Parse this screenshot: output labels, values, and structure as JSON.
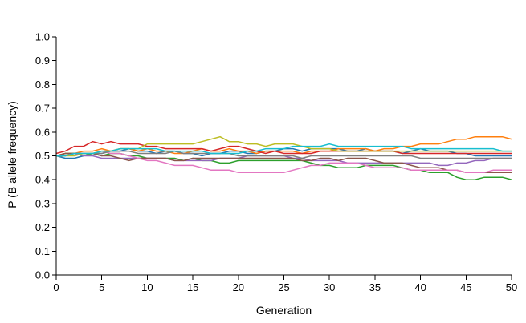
{
  "chart_data": {
    "type": "line",
    "xlabel": "Generation",
    "ylabel": "P (B allele frequency)",
    "xlim": [
      0,
      50
    ],
    "ylim": [
      0,
      1
    ],
    "x_ticks": [
      "0",
      "5",
      "10",
      "15",
      "20",
      "25",
      "30",
      "35",
      "40",
      "45",
      "50"
    ],
    "y_ticks": [
      "0.0",
      "0.1",
      "0.2",
      "0.3",
      "0.4",
      "0.5",
      "0.6",
      "0.7",
      "0.8",
      "0.9",
      "1.0"
    ],
    "grid": false,
    "legend": "none",
    "x": [
      0,
      1,
      2,
      3,
      4,
      5,
      6,
      7,
      8,
      9,
      10,
      11,
      12,
      13,
      14,
      15,
      16,
      17,
      18,
      19,
      20,
      21,
      22,
      23,
      24,
      25,
      26,
      27,
      28,
      29,
      30,
      31,
      32,
      33,
      34,
      35,
      36,
      37,
      38,
      39,
      40,
      41,
      42,
      43,
      44,
      45,
      46,
      47,
      48,
      49,
      50
    ],
    "series": [
      {
        "color": "#1f77b4",
        "values": [
          0.5,
          0.49,
          0.49,
          0.5,
          0.51,
          0.51,
          0.52,
          0.52,
          0.53,
          0.52,
          0.52,
          0.51,
          0.52,
          0.52,
          0.51,
          0.51,
          0.5,
          0.51,
          0.51,
          0.52,
          0.52,
          0.51,
          0.51,
          0.52,
          0.52,
          0.53,
          0.53,
          0.52,
          0.53,
          0.53,
          0.53,
          0.53,
          0.52,
          0.52,
          0.53,
          0.52,
          0.52,
          0.52,
          0.51,
          0.52,
          0.53,
          0.52,
          0.52,
          0.52,
          0.51,
          0.51,
          0.5,
          0.5,
          0.5,
          0.5,
          0.5
        ]
      },
      {
        "color": "#ff7f0e",
        "values": [
          0.5,
          0.51,
          0.51,
          0.52,
          0.52,
          0.53,
          0.52,
          0.53,
          0.53,
          0.52,
          0.53,
          0.52,
          0.52,
          0.51,
          0.51,
          0.52,
          0.53,
          0.52,
          0.52,
          0.53,
          0.52,
          0.52,
          0.51,
          0.52,
          0.52,
          0.52,
          0.52,
          0.51,
          0.52,
          0.52,
          0.52,
          0.53,
          0.53,
          0.53,
          0.53,
          0.52,
          0.53,
          0.53,
          0.54,
          0.54,
          0.55,
          0.55,
          0.55,
          0.56,
          0.57,
          0.57,
          0.58,
          0.58,
          0.58,
          0.58,
          0.57
        ]
      },
      {
        "color": "#2ca02c",
        "values": [
          0.5,
          0.51,
          0.51,
          0.5,
          0.51,
          0.5,
          0.51,
          0.51,
          0.5,
          0.5,
          0.49,
          0.49,
          0.49,
          0.49,
          0.48,
          0.49,
          0.48,
          0.48,
          0.47,
          0.47,
          0.48,
          0.48,
          0.48,
          0.48,
          0.48,
          0.48,
          0.48,
          0.48,
          0.47,
          0.46,
          0.46,
          0.45,
          0.45,
          0.45,
          0.46,
          0.46,
          0.46,
          0.46,
          0.45,
          0.44,
          0.44,
          0.43,
          0.43,
          0.43,
          0.41,
          0.4,
          0.4,
          0.41,
          0.41,
          0.41,
          0.4
        ]
      },
      {
        "color": "#d62728",
        "values": [
          0.51,
          0.52,
          0.54,
          0.54,
          0.56,
          0.55,
          0.56,
          0.55,
          0.55,
          0.55,
          0.54,
          0.54,
          0.53,
          0.53,
          0.53,
          0.53,
          0.53,
          0.52,
          0.53,
          0.54,
          0.54,
          0.53,
          0.52,
          0.51,
          0.52,
          0.51,
          0.51,
          0.51,
          0.51,
          0.52,
          0.52,
          0.52,
          0.52,
          0.52,
          0.52,
          0.52,
          0.52,
          0.52,
          0.51,
          0.51,
          0.51,
          0.51,
          0.51,
          0.51,
          0.51,
          0.51,
          0.51,
          0.51,
          0.51,
          0.51,
          0.51
        ]
      },
      {
        "color": "#9467bd",
        "values": [
          0.5,
          0.5,
          0.51,
          0.5,
          0.5,
          0.49,
          0.49,
          0.49,
          0.49,
          0.49,
          0.49,
          0.49,
          0.49,
          0.48,
          0.48,
          0.48,
          0.48,
          0.48,
          0.49,
          0.49,
          0.49,
          0.5,
          0.5,
          0.5,
          0.5,
          0.5,
          0.49,
          0.49,
          0.48,
          0.48,
          0.48,
          0.48,
          0.47,
          0.47,
          0.47,
          0.47,
          0.47,
          0.47,
          0.47,
          0.47,
          0.47,
          0.47,
          0.46,
          0.46,
          0.47,
          0.47,
          0.48,
          0.48,
          0.49,
          0.49,
          0.49
        ]
      },
      {
        "color": "#8c564b",
        "values": [
          0.5,
          0.51,
          0.51,
          0.51,
          0.51,
          0.5,
          0.5,
          0.49,
          0.48,
          0.49,
          0.49,
          0.49,
          0.49,
          0.48,
          0.48,
          0.49,
          0.49,
          0.49,
          0.49,
          0.49,
          0.49,
          0.49,
          0.49,
          0.49,
          0.49,
          0.49,
          0.49,
          0.48,
          0.48,
          0.49,
          0.49,
          0.48,
          0.49,
          0.49,
          0.49,
          0.48,
          0.47,
          0.47,
          0.47,
          0.46,
          0.45,
          0.45,
          0.45,
          0.44,
          0.44,
          0.43,
          0.43,
          0.43,
          0.43,
          0.43,
          0.43
        ]
      },
      {
        "color": "#e377c2",
        "values": [
          0.5,
          0.5,
          0.51,
          0.51,
          0.51,
          0.52,
          0.51,
          0.51,
          0.5,
          0.49,
          0.48,
          0.48,
          0.47,
          0.46,
          0.46,
          0.46,
          0.45,
          0.44,
          0.44,
          0.44,
          0.43,
          0.43,
          0.43,
          0.43,
          0.43,
          0.43,
          0.44,
          0.45,
          0.46,
          0.46,
          0.47,
          0.47,
          0.47,
          0.47,
          0.46,
          0.45,
          0.45,
          0.45,
          0.45,
          0.44,
          0.44,
          0.44,
          0.44,
          0.44,
          0.44,
          0.43,
          0.43,
          0.43,
          0.44,
          0.44,
          0.44
        ]
      },
      {
        "color": "#7f7f7f",
        "values": [
          0.5,
          0.5,
          0.51,
          0.51,
          0.51,
          0.51,
          0.52,
          0.52,
          0.52,
          0.51,
          0.51,
          0.51,
          0.51,
          0.52,
          0.51,
          0.51,
          0.51,
          0.51,
          0.51,
          0.51,
          0.5,
          0.5,
          0.5,
          0.5,
          0.5,
          0.5,
          0.5,
          0.49,
          0.5,
          0.5,
          0.5,
          0.5,
          0.5,
          0.5,
          0.5,
          0.5,
          0.5,
          0.5,
          0.5,
          0.5,
          0.49,
          0.49,
          0.49,
          0.49,
          0.49,
          0.49,
          0.49,
          0.49,
          0.49,
          0.49,
          0.49
        ]
      },
      {
        "color": "#bcbd22",
        "values": [
          0.5,
          0.5,
          0.5,
          0.51,
          0.51,
          0.52,
          0.52,
          0.53,
          0.53,
          0.53,
          0.55,
          0.55,
          0.55,
          0.55,
          0.55,
          0.55,
          0.56,
          0.57,
          0.58,
          0.56,
          0.56,
          0.55,
          0.55,
          0.54,
          0.55,
          0.55,
          0.55,
          0.54,
          0.53,
          0.53,
          0.53,
          0.52,
          0.52,
          0.52,
          0.52,
          0.52,
          0.52,
          0.52,
          0.52,
          0.52,
          0.52,
          0.52,
          0.52,
          0.52,
          0.52,
          0.52,
          0.52,
          0.52,
          0.52,
          0.52,
          0.52
        ]
      },
      {
        "color": "#17becf",
        "values": [
          0.5,
          0.5,
          0.51,
          0.51,
          0.51,
          0.52,
          0.52,
          0.53,
          0.53,
          0.53,
          0.53,
          0.53,
          0.52,
          0.52,
          0.52,
          0.52,
          0.52,
          0.51,
          0.51,
          0.51,
          0.51,
          0.52,
          0.52,
          0.53,
          0.53,
          0.53,
          0.54,
          0.54,
          0.54,
          0.54,
          0.55,
          0.54,
          0.54,
          0.54,
          0.54,
          0.54,
          0.54,
          0.54,
          0.54,
          0.53,
          0.53,
          0.53,
          0.53,
          0.53,
          0.53,
          0.53,
          0.53,
          0.53,
          0.53,
          0.52,
          0.52
        ]
      }
    ]
  }
}
